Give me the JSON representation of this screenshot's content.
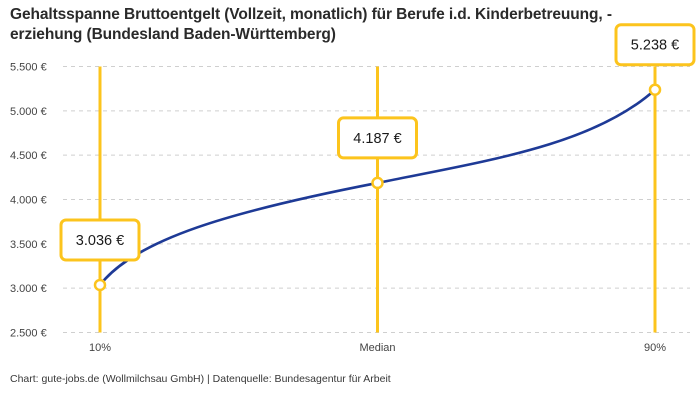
{
  "title": "Gehaltsspanne Bruttoentgelt (Vollzeit, monatlich) für Berufe i.d. Kinderbetreuung, -erziehung (Bundesland Baden-Württemberg)",
  "footer": "Chart: gute-jobs.de (Wollmilchsau GmbH) | Datenquelle: Bundesagentur für Arbeit",
  "chart_data": {
    "type": "line",
    "title": "Gehaltsspanne Bruttoentgelt (Vollzeit, monatlich) für Berufe i.d. Kinderbetreuung, -erziehung (Bundesland Baden-Württemberg)",
    "categories": [
      "10%",
      "Median",
      "90%"
    ],
    "percentiles": [
      10,
      50,
      90
    ],
    "values": [
      3036,
      4187,
      5238
    ],
    "point_labels": [
      "3.036 €",
      "4.187 €",
      "5.238 €"
    ],
    "ylim": [
      2500,
      5500
    ],
    "yticks": [
      5500,
      5000,
      4500,
      4000,
      3500,
      3000,
      2500
    ],
    "ytick_labels": [
      "5.500 €",
      "5.000 €",
      "4.500 €",
      "4.000 €",
      "3.500 €",
      "3.000 €",
      "2.500 €"
    ],
    "xlabel": "",
    "ylabel": "",
    "grid": "horizontal-dashed",
    "legend": "none",
    "colors": {
      "line": "#1e3a96",
      "marker": "#fcc41d",
      "grid": "#cfcfcf",
      "axis_text": "#444444",
      "label_text": "#1a1a1a",
      "label_bg": "#ffffff"
    }
  }
}
